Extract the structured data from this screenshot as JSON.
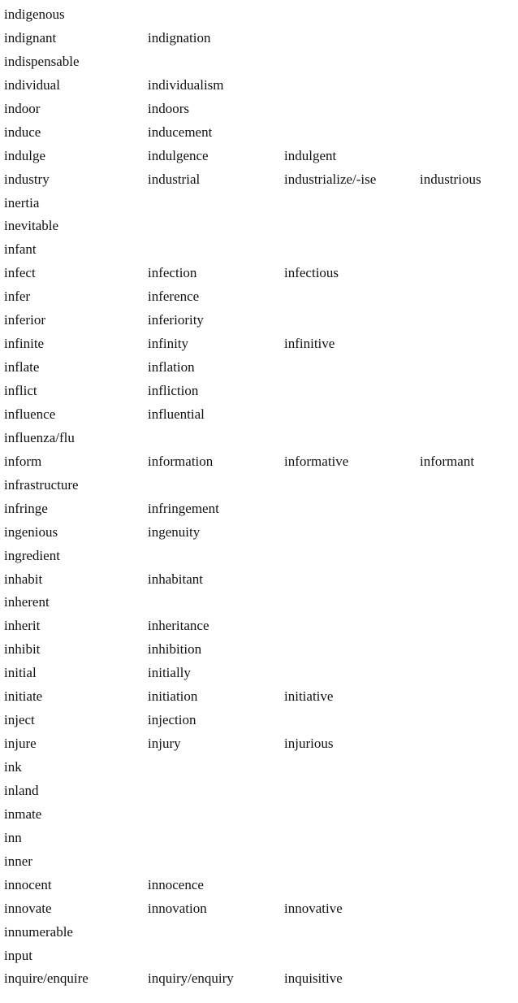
{
  "words": [
    [
      "indigenous"
    ],
    [
      "indignant",
      "indignation"
    ],
    [
      "indispensable"
    ],
    [
      "individual",
      "individualism"
    ],
    [
      "indoor",
      "indoors"
    ],
    [
      "induce",
      "inducement"
    ],
    [
      "indulge",
      "indulgence",
      "indulgent"
    ],
    [
      "industry",
      "industrial",
      "industrialize/-ise",
      "industrious"
    ],
    [
      "inertia"
    ],
    [
      "inevitable"
    ],
    [
      "infant"
    ],
    [
      "infect",
      "infection",
      "infectious"
    ],
    [
      "infer",
      "inference"
    ],
    [
      "inferior",
      "inferiority"
    ],
    [
      "infinite",
      "infinity",
      "infinitive"
    ],
    [
      "inflate",
      "inflation"
    ],
    [
      "inflict",
      "infliction"
    ],
    [
      "influence",
      "influential"
    ],
    [
      "influenza/flu"
    ],
    [
      "inform",
      "information",
      "informative",
      "informant"
    ],
    [
      "infrastructure"
    ],
    [
      "infringe",
      "infringement"
    ],
    [
      "ingenious",
      "ingenuity"
    ],
    [
      "ingredient"
    ],
    [
      "inhabit",
      "inhabitant"
    ],
    [
      "inherent"
    ],
    [
      "inherit",
      "inheritance"
    ],
    [
      "inhibit",
      "inhibition"
    ],
    [
      "initial",
      "initially"
    ],
    [
      "initiate",
      "initiation",
      "initiative"
    ],
    [
      "inject",
      "injection"
    ],
    [
      "injure",
      "injury",
      "injurious"
    ],
    [
      "ink"
    ],
    [
      "inland"
    ],
    [
      "inmate"
    ],
    [
      "inn"
    ],
    [
      "inner"
    ],
    [
      "innocent",
      "innocence"
    ],
    [
      "innovate",
      "innovation",
      "innovative"
    ],
    [
      "innumerable"
    ],
    [
      "input"
    ],
    [
      "inquire/enquire",
      "inquiry/enquiry",
      "inquisitive"
    ]
  ]
}
